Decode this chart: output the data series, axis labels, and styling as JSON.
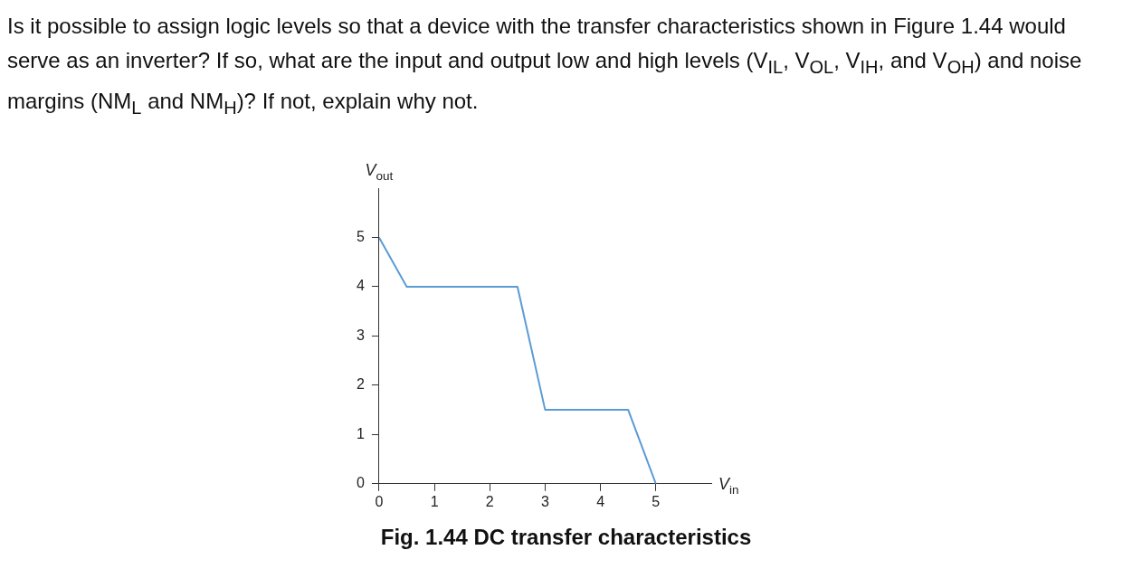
{
  "chart_data": {
    "type": "line",
    "title": "Is it possible to assign logic levels so that a device with the transfer characteristics shown in Figure 1.44 would serve as an inverter? If so, what are the input and output low and high levels (V$_{IL}$, V$_{OL}$, V$_{IH}$, and V$_{OH}$) and noise margins (NM$_{L}$ and NM$_{H}$)? If not, explain why not.",
    "xlabel": "V$_{in}$",
    "ylabel": "V$_{out}$",
    "annotations": [
      "Fig. 1.44 DC transfer characteristics"
    ],
    "series": [
      {
        "color": "#5b9bd5",
        "x": [
          0,
          0.5,
          2.5,
          3,
          4.5,
          5
        ],
        "values": [
          5,
          4,
          4,
          1.5,
          1.5,
          0
        ]
      }
    ],
    "xlim": [
      0,
      6
    ],
    "xticks": [
      0,
      1,
      2,
      3,
      4,
      5
    ],
    "ylim": [
      0,
      6
    ],
    "yticks": [
      0,
      1,
      2,
      3,
      4,
      5
    ],
    "grid": false,
    "legend": false,
    "marker": "none",
    "line_style": "solid"
  }
}
